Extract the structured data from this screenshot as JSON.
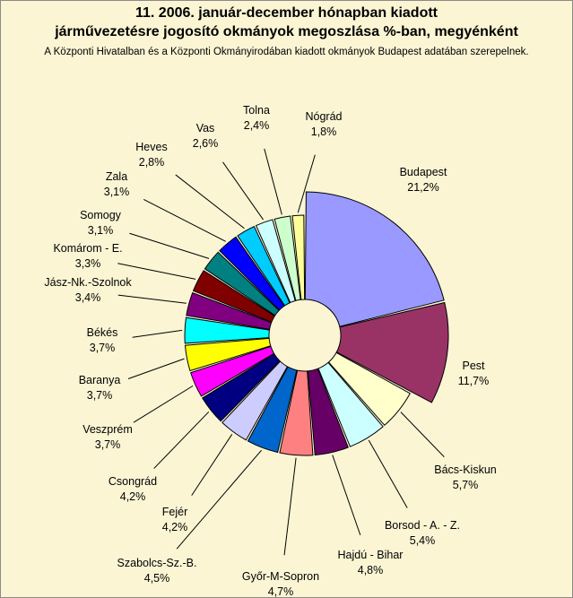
{
  "title_line1": "11. 2006. január-december hónapban kiadott",
  "title_line2": "járművezetésre jogosító okmányok megoszlása %-ban, megyénként",
  "subtitle": "A Központi Hivatalban és a Központi Okmányirodában kiadott okmányok Budapest adatában szerepelnek.",
  "chart_data": {
    "type": "pie",
    "exploded": true,
    "slices": [
      {
        "name": "Budapest",
        "value": 21.2,
        "label": "21,2%",
        "color": "#9999ff"
      },
      {
        "name": "Pest",
        "value": 11.7,
        "label": "11,7%",
        "color": "#993366"
      },
      {
        "name": "Bács-Kiskun",
        "value": 5.7,
        "label": "5,7%",
        "color": "#ffffcc"
      },
      {
        "name": "Borsod - A. - Z.",
        "value": 5.4,
        "label": "5,4%",
        "color": "#ccffff"
      },
      {
        "name": "Hajdú - Bihar",
        "value": 4.8,
        "label": "4,8%",
        "color": "#660066"
      },
      {
        "name": "Győr-M-Sopron",
        "value": 4.7,
        "label": "4,7%",
        "color": "#ff8080"
      },
      {
        "name": "Szabolcs-Sz.-B.",
        "value": 4.5,
        "label": "4,5%",
        "color": "#0066cc"
      },
      {
        "name": "Fejér",
        "value": 4.2,
        "label": "4,2%",
        "color": "#ccccff"
      },
      {
        "name": "Csongrád",
        "value": 4.2,
        "label": "4,2%",
        "color": "#000080"
      },
      {
        "name": "Veszprém",
        "value": 3.7,
        "label": "3,7%",
        "color": "#ff00ff"
      },
      {
        "name": "Baranya",
        "value": 3.7,
        "label": "3,7%",
        "color": "#ffff00"
      },
      {
        "name": "Békés",
        "value": 3.7,
        "label": "3,7%",
        "color": "#00ffff"
      },
      {
        "name": "Jász-Nk.-Szolnok",
        "value": 3.4,
        "label": "3,4%",
        "color": "#800080"
      },
      {
        "name": "Komárom - E.",
        "value": 3.3,
        "label": "3,3%",
        "color": "#800000"
      },
      {
        "name": "Somogy",
        "value": 3.1,
        "label": "3,1%",
        "color": "#008080"
      },
      {
        "name": "Zala",
        "value": 3.1,
        "label": "3,1%",
        "color": "#0000ff"
      },
      {
        "name": "Heves",
        "value": 2.8,
        "label": "2,8%",
        "color": "#00ccff"
      },
      {
        "name": "Vas",
        "value": 2.6,
        "label": "2,6%",
        "color": "#ccffff"
      },
      {
        "name": "Tolna",
        "value": 2.4,
        "label": "2,4%",
        "color": "#ccffcc"
      },
      {
        "name": "Nógrád",
        "value": 1.8,
        "label": "1,8%",
        "color": "#ffff99"
      }
    ]
  }
}
